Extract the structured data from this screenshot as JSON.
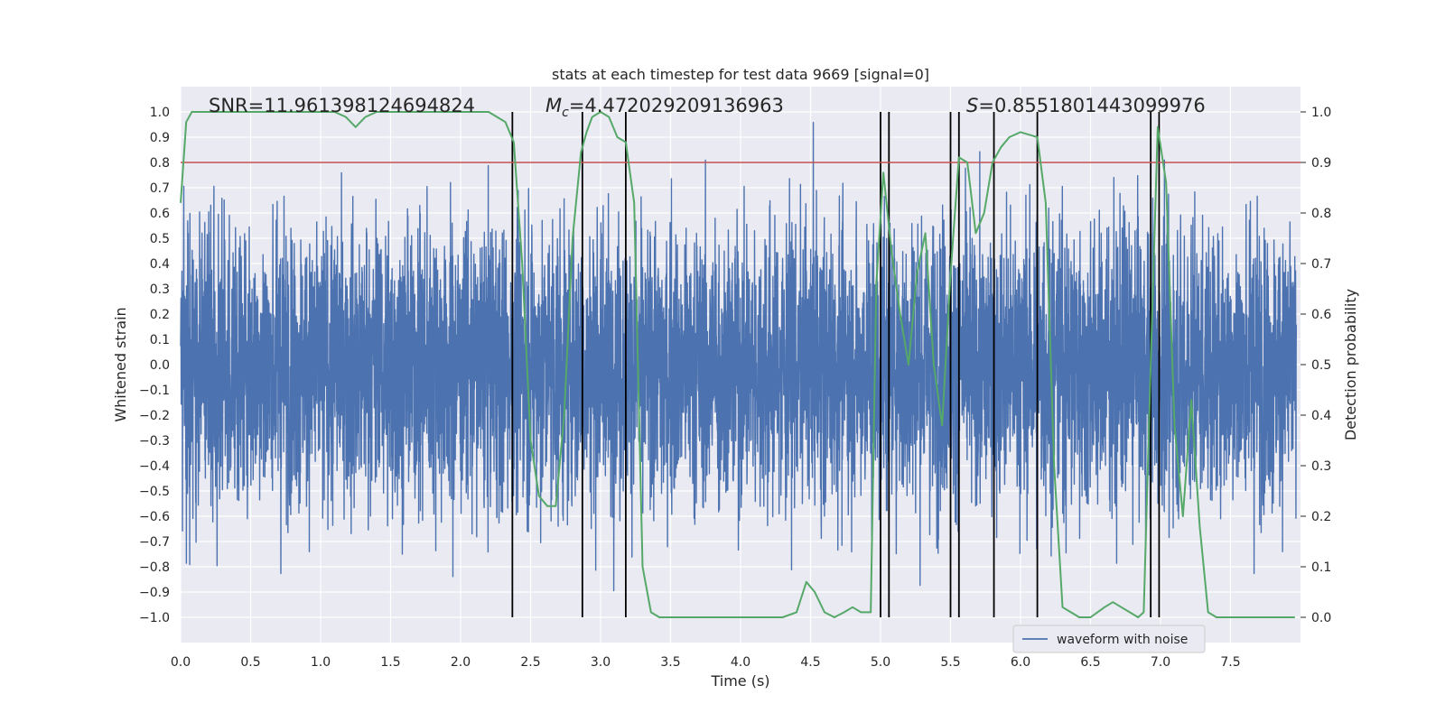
{
  "chart_data": {
    "type": "line",
    "title": "stats at each timestep for test data 9669 [signal=0]",
    "xlabel": "Time (s)",
    "ylabel": "Whitened strain",
    "y2label": "Detection probability",
    "xlim": [
      0.0,
      8.0
    ],
    "ylim": [
      -1.1,
      1.1
    ],
    "y2lim": [
      -0.05,
      1.05
    ],
    "xticks": [
      0.0,
      0.5,
      1.0,
      1.5,
      2.0,
      2.5,
      3.0,
      3.5,
      4.0,
      4.5,
      5.0,
      5.5,
      6.0,
      6.5,
      7.0,
      7.5
    ],
    "xtick_labels": [
      "0.0",
      "0.5",
      "1.0",
      "1.5",
      "2.0",
      "2.5",
      "3.0",
      "3.5",
      "4.0",
      "4.5",
      "5.0",
      "5.5",
      "6.0",
      "6.5",
      "7.0",
      "7.5"
    ],
    "yticks": [
      -1.0,
      -0.9,
      -0.8,
      -0.7,
      -0.6,
      -0.5,
      -0.4,
      -0.3,
      -0.2,
      -0.1,
      0.0,
      0.1,
      0.2,
      0.3,
      0.4,
      0.5,
      0.6,
      0.7,
      0.8,
      0.9,
      1.0
    ],
    "ytick_labels": [
      "−1.0",
      "−0.9",
      "−0.8",
      "−0.7",
      "−0.6",
      "−0.5",
      "−0.4",
      "−0.3",
      "−0.2",
      "−0.1",
      "0.0",
      "0.1",
      "0.2",
      "0.3",
      "0.4",
      "0.5",
      "0.6",
      "0.7",
      "0.8",
      "0.9",
      "1.0"
    ],
    "y2ticks": [
      0.0,
      0.1,
      0.2,
      0.3,
      0.4,
      0.5,
      0.6,
      0.7,
      0.8,
      0.9,
      1.0
    ],
    "y2tick_labels": [
      "0.0",
      "0.1",
      "0.2",
      "0.3",
      "0.4",
      "0.5",
      "0.6",
      "0.7",
      "0.8",
      "0.9",
      "1.0"
    ],
    "annotations": {
      "snr": "SNR=11.961398124694824",
      "mc_symbol": "M",
      "mc_sub": "c",
      "mc_value": "=4.47202920913696​3",
      "s_symbol": "S",
      "s_value": "=0.8551801443099976"
    },
    "threshold": {
      "value": 0.9,
      "axis": "y2",
      "color": "#c44e52"
    },
    "legend": {
      "label": "waveform with noise",
      "placement": "lower right"
    },
    "vertical_lines": [
      2.37,
      2.87,
      3.18,
      5.0,
      5.06,
      5.5,
      5.56,
      5.81,
      6.12,
      6.93,
      6.99
    ],
    "waveform": {
      "name": "waveform with noise",
      "color": "#4c72b0",
      "envelope_note": "dense noise, approx symmetric, upper peaks ~0.6-1.0, lower peaks ~-0.5 to -1.0"
    },
    "series": [
      {
        "name": "Detection probability",
        "axis": "y2",
        "color": "#55a868",
        "x": [
          0.0,
          0.04,
          0.08,
          0.12,
          0.2,
          0.4,
          0.6,
          0.8,
          1.0,
          1.1,
          1.18,
          1.25,
          1.32,
          1.4,
          1.6,
          1.8,
          2.0,
          2.1,
          2.2,
          2.26,
          2.32,
          2.38,
          2.44,
          2.5,
          2.56,
          2.62,
          2.68,
          2.74,
          2.8,
          2.86,
          2.9,
          2.94,
          3.0,
          3.06,
          3.12,
          3.18,
          3.24,
          3.3,
          3.36,
          3.42,
          3.5,
          3.7,
          4.0,
          4.3,
          4.4,
          4.47,
          4.53,
          4.6,
          4.67,
          4.74,
          4.8,
          4.86,
          4.93,
          4.97,
          5.02,
          5.08,
          5.14,
          5.2,
          5.26,
          5.32,
          5.38,
          5.44,
          5.5,
          5.56,
          5.62,
          5.68,
          5.74,
          5.8,
          5.86,
          5.92,
          6.0,
          6.12,
          6.18,
          6.24,
          6.3,
          6.36,
          6.42,
          6.5,
          6.6,
          6.66,
          6.72,
          6.78,
          6.84,
          6.88,
          6.93,
          6.98,
          7.04,
          7.1,
          7.16,
          7.22,
          7.28,
          7.34,
          7.4,
          7.5,
          7.7,
          7.9,
          7.96
        ],
        "values": [
          0.82,
          0.98,
          1.0,
          1.0,
          1.0,
          1.0,
          1.0,
          1.0,
          1.0,
          1.0,
          0.99,
          0.97,
          0.99,
          1.0,
          1.0,
          1.0,
          1.0,
          1.0,
          1.0,
          0.99,
          0.98,
          0.94,
          0.7,
          0.35,
          0.24,
          0.22,
          0.22,
          0.4,
          0.75,
          0.92,
          0.96,
          0.99,
          1.0,
          0.99,
          0.95,
          0.94,
          0.82,
          0.1,
          0.01,
          0.0,
          0.0,
          0.0,
          0.0,
          0.0,
          0.01,
          0.07,
          0.05,
          0.01,
          0.0,
          0.01,
          0.02,
          0.01,
          0.01,
          0.66,
          0.88,
          0.72,
          0.6,
          0.5,
          0.68,
          0.76,
          0.5,
          0.38,
          0.68,
          0.91,
          0.9,
          0.76,
          0.8,
          0.9,
          0.93,
          0.95,
          0.96,
          0.95,
          0.82,
          0.3,
          0.02,
          0.01,
          0.0,
          0.0,
          0.02,
          0.03,
          0.02,
          0.01,
          0.0,
          0.01,
          0.5,
          0.97,
          0.86,
          0.38,
          0.2,
          0.43,
          0.18,
          0.01,
          0.0,
          0.0,
          0.0,
          0.0,
          0.0
        ]
      }
    ]
  }
}
